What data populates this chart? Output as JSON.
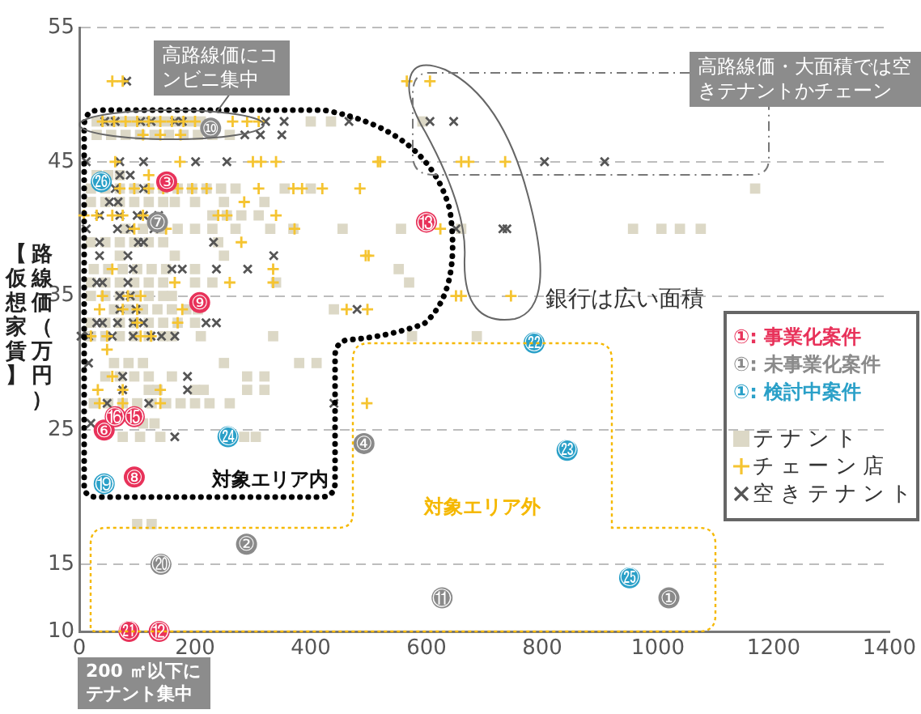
{
  "chart_data": {
    "type": "scatter",
    "ylabel": "路線価（万円）【仮想家賃】",
    "annotations": [
      "高路線価にコンビニ集中",
      "高路線価・大面積では空きテナントかチェーン",
      "銀行は広い面積",
      "対象エリア内",
      "対象エリア外",
      "200 ㎡以下にテナント集中"
    ],
    "xlim": [
      0,
      1400
    ],
    "xticks": [
      0,
      200,
      400,
      600,
      800,
      1000,
      1200,
      1400
    ],
    "ylim": [
      10,
      55
    ],
    "yticks": [
      10,
      15,
      25,
      35,
      45,
      55
    ],
    "grid": "y",
    "legend": "right",
    "series": [
      {
        "name": "①: 事業化案件",
        "color": "#e8325a",
        "marker": "circle",
        "x": [
          151,
          600,
          208,
          62,
          95,
          43,
          95,
          86,
          138
        ],
        "values": [
          43.5,
          40.5,
          34.5,
          26,
          26,
          25,
          21.5,
          10,
          10
        ],
        "value_labels": [
          "③",
          "⑬",
          "⑨",
          "⑯",
          "⑮",
          "⑥",
          "⑧",
          "㉑",
          "⑫"
        ]
      },
      {
        "name": "①: 未事業化案件",
        "color": "#8a8a8a",
        "marker": "circle",
        "x": [
          227,
          135,
          492,
          289,
          141,
          627,
          1019
        ],
        "values": [
          47.5,
          40.5,
          24,
          16.5,
          15,
          12.5,
          12.5
        ],
        "value_labels": [
          "⑩",
          "⑦",
          "④",
          "②",
          "⑳",
          "⑪",
          "①"
        ]
      },
      {
        "name": "①: 検討中案件",
        "color": "#2aa0c8",
        "marker": "circle",
        "x": [
          38,
          43,
          257,
          786,
          843,
          951
        ],
        "values": [
          43.5,
          21,
          24.5,
          31.5,
          23.5,
          14
        ],
        "value_labels": [
          "㉖",
          "⑲",
          "㉔",
          "㉒",
          "㉓",
          "㉕"
        ]
      },
      {
        "name": "テナント",
        "color": "#dcd8c6",
        "marker": "square",
        "x": [
          30,
          50,
          70,
          90,
          110,
          130,
          150,
          170,
          190,
          210,
          400,
          435,
          593,
          30,
          55,
          80,
          105,
          130,
          155,
          180,
          205,
          230,
          260,
          30,
          50,
          70,
          20,
          45,
          70,
          95,
          120,
          145,
          170,
          195,
          220,
          245,
          270,
          355,
          400,
          1168,
          20,
          45,
          70,
          95,
          120,
          145,
          165,
          200,
          250,
          320,
          230,
          255,
          280,
          310,
          80,
          110,
          140,
          170,
          200,
          230,
          270,
          330,
          370,
          455,
          556,
          660,
          957,
          1006,
          1038,
          1074,
          20,
          45,
          70,
          95,
          120,
          145,
          240,
          70,
          165,
          250,
          25,
          50,
          75,
          100,
          125,
          150,
          200,
          552,
          20,
          45,
          70,
          95,
          120,
          145,
          200,
          230,
          340,
          570,
          20,
          45,
          70,
          95,
          120,
          145,
          160,
          60,
          85,
          110,
          135,
          160,
          185,
          205,
          440,
          20,
          45,
          70,
          95,
          120,
          145,
          170,
          200,
          20,
          45,
          70,
          95,
          120,
          145,
          160,
          210,
          335,
          575,
          687,
          60,
          85,
          110,
          250,
          380,
          410,
          45,
          70,
          95,
          120,
          160,
          290,
          320,
          120,
          135,
          200,
          215,
          290,
          320,
          25,
          50,
          75,
          100,
          125,
          150,
          175,
          200,
          225,
          260,
          110,
          130,
          75,
          105,
          140,
          285,
          305,
          100,
          125
        ],
        "values": [
          48,
          48,
          48,
          48,
          48,
          48,
          48,
          48,
          48,
          48,
          48,
          48,
          48,
          47,
          47,
          47,
          47,
          47,
          47,
          47,
          47,
          47,
          47,
          44,
          44,
          44,
          43,
          43,
          43,
          43,
          43,
          43,
          43,
          43,
          43,
          43,
          43,
          43,
          43,
          43,
          42,
          42,
          42,
          42,
          42,
          42,
          42,
          42,
          42,
          42,
          41,
          41,
          41,
          41,
          40,
          40,
          40,
          40,
          40,
          40,
          40,
          40,
          40,
          40,
          40,
          40,
          40,
          40,
          40,
          40,
          39,
          39,
          39,
          39,
          39,
          39,
          39,
          38,
          38,
          38,
          37,
          37,
          37,
          37,
          37,
          37,
          37,
          37,
          36,
          36,
          36,
          36,
          36,
          36,
          36,
          36,
          36,
          36,
          35,
          35,
          35,
          35,
          35,
          35,
          35,
          34,
          34,
          34,
          34,
          34,
          34,
          34,
          34,
          33,
          33,
          33,
          33,
          33,
          33,
          33,
          33,
          32,
          32,
          32,
          32,
          32,
          32,
          32,
          32,
          32,
          32,
          32,
          30,
          30,
          30,
          30,
          30,
          30,
          29,
          29,
          29,
          29,
          29,
          29,
          29,
          28,
          28,
          28,
          28,
          28,
          28,
          27,
          27,
          27,
          27,
          27,
          27,
          27,
          27,
          27,
          27,
          25.5,
          25.5,
          24.5,
          24.5,
          24.5,
          24.5,
          24.5,
          18,
          18
        ]
      },
      {
        "name": "チェーン店",
        "color": "#f5c431",
        "marker": "cross",
        "x": [
          57,
          75,
          566,
          606,
          40,
          60,
          80,
          100,
          120,
          140,
          160,
          180,
          200,
          265,
          290,
          310,
          110,
          140,
          175,
          62,
          174,
          300,
          314,
          340,
          516,
          520,
          660,
          673,
          736,
          120,
          70,
          95,
          120,
          145,
          170,
          195,
          220,
          310,
          370,
          385,
          420,
          485,
          285,
          8,
          30,
          57,
          75,
          110,
          240,
          255,
          340,
          95,
          150,
          372,
          624,
          280,
          495,
          500,
          57,
          335,
          165,
          260,
          335,
          40,
          84,
          106,
          651,
          660,
          746,
          35,
          75,
          100,
          178,
          462,
          498,
          100,
          170,
          20,
          48,
          106,
          124,
          48,
          57,
          32,
          75,
          140,
          35,
          75,
          140,
          497
        ],
        "values": [
          51,
          51,
          51,
          51,
          48,
          48,
          48,
          48,
          48,
          48,
          48,
          48,
          48,
          48,
          48,
          48,
          47,
          47,
          47,
          45,
          45,
          45,
          45,
          45,
          45,
          45,
          45,
          45,
          45,
          44,
          43,
          43,
          43,
          43,
          43,
          43,
          43,
          43,
          43,
          43,
          43,
          43,
          42,
          41,
          41,
          41,
          41,
          41,
          41,
          41,
          41,
          40,
          40,
          40,
          40,
          39,
          38,
          38,
          37,
          37,
          36,
          36,
          36,
          35,
          35,
          35,
          35,
          35,
          35,
          34,
          34,
          34,
          34,
          34,
          34,
          33,
          33,
          32,
          32,
          32,
          32,
          31,
          29,
          28,
          28,
          28,
          27,
          27,
          27,
          27
        ]
      },
      {
        "name": "空きテナント",
        "color": "#555555",
        "marker": "x",
        "x": [
          82,
          44,
          62,
          106,
          124,
          165,
          178,
          322,
          354,
          466,
          606,
          647,
          286,
          313,
          350,
          12,
          70,
          111,
          201,
          255,
          804,
          908,
          70,
          88,
          62,
          111,
          52,
          67,
          35,
          70,
          100,
          111,
          137,
          12,
          66,
          88,
          129,
          651,
          732,
          739,
          35,
          102,
          111,
          232,
          35,
          84,
          336,
          93,
          160,
          178,
          237,
          291,
          30,
          40,
          84,
          70,
          88,
          70,
          98,
          480,
          30,
          40,
          66,
          93,
          111,
          219,
          237,
          3,
          16,
          57,
          93,
          124,
          142,
          165,
          16,
          75,
          187,
          75,
          187,
          48,
          120,
          440,
          20,
          165
        ],
        "values": [
          51,
          48,
          48,
          48,
          48,
          48,
          48,
          48,
          48,
          48,
          48,
          48,
          47,
          47,
          47,
          45,
          45,
          45,
          45,
          45,
          45,
          45,
          44,
          44,
          43,
          43,
          42,
          42,
          41,
          41,
          41,
          41,
          41,
          40,
          40,
          40,
          40,
          40,
          40,
          40,
          39,
          39,
          39,
          39,
          38,
          38,
          38,
          37,
          37,
          37,
          37,
          37,
          36,
          36,
          36,
          35,
          35,
          34,
          34,
          34,
          33,
          33,
          33,
          33,
          33,
          33,
          33,
          32,
          32,
          32,
          32,
          32,
          32,
          32,
          30,
          29,
          29,
          28,
          28,
          27,
          27,
          27,
          25.5,
          24.5
        ]
      }
    ]
  }
}
